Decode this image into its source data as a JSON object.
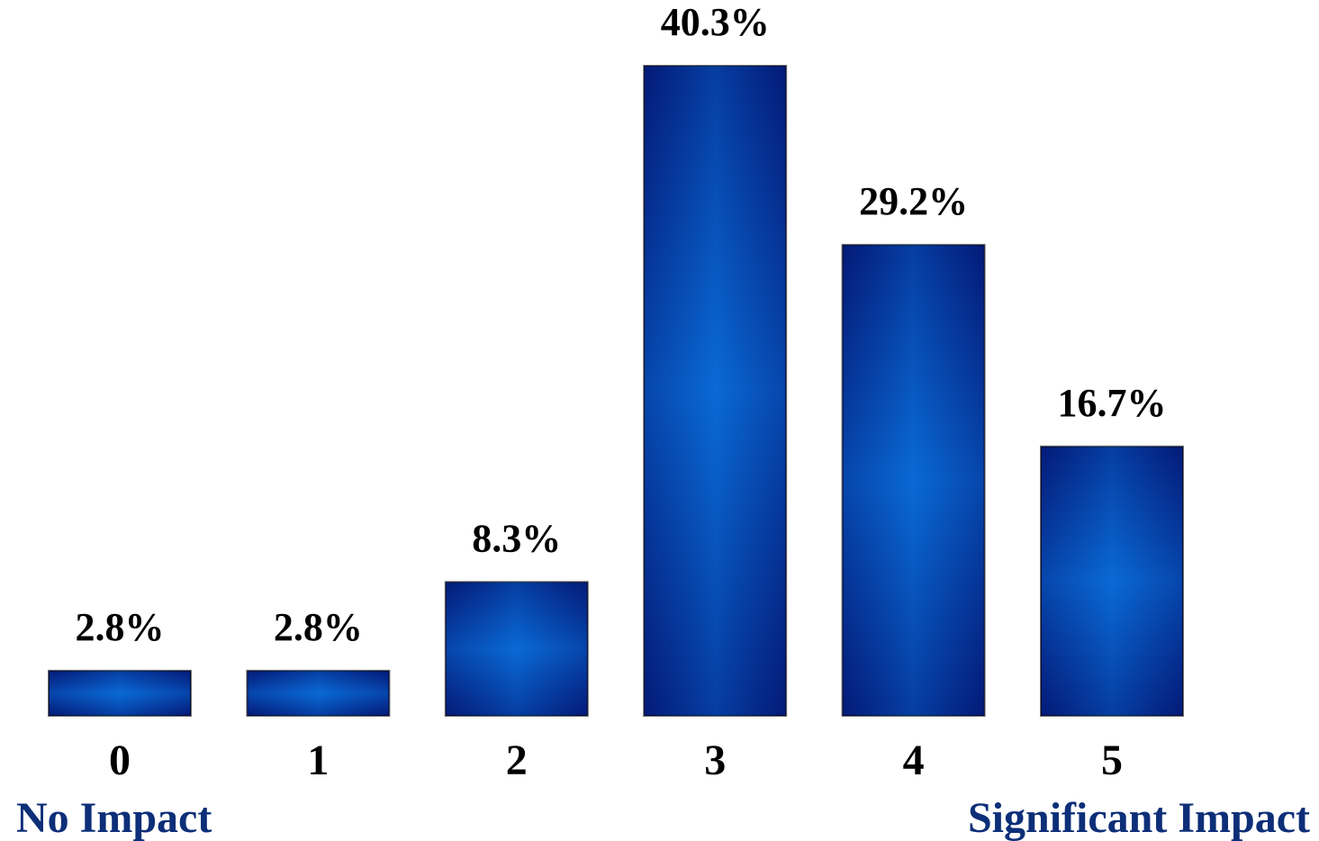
{
  "chart_data": {
    "type": "bar",
    "categories": [
      "0",
      "1",
      "2",
      "3",
      "4",
      "5"
    ],
    "values": [
      2.8,
      2.8,
      8.3,
      40.3,
      29.2,
      16.7
    ],
    "value_labels": [
      "2.8%",
      "2.8%",
      "8.3%",
      "40.3%",
      "29.2%",
      "16.7%"
    ],
    "scale_labels": {
      "low": "No Impact",
      "high": "Significant Impact"
    },
    "ylim": [
      0,
      40.3
    ],
    "grid": false,
    "legend": "none",
    "colors": {
      "bar_edge": "#041a78",
      "bar_center": "#0a6ad6",
      "bar_outline": "#000000",
      "scale_text": "#0d2f78"
    }
  }
}
